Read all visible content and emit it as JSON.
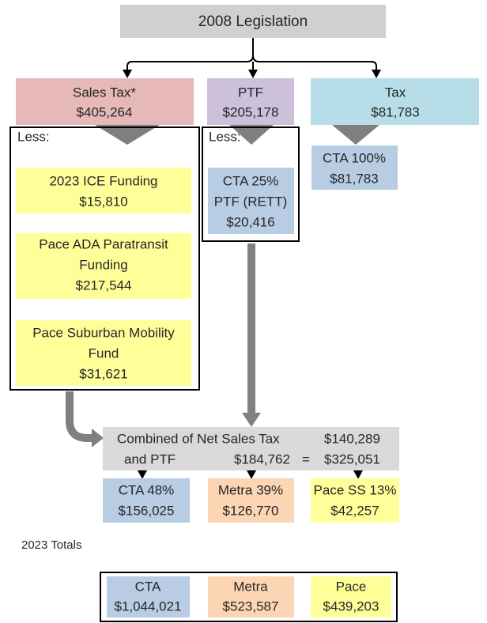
{
  "title": "2008 Legislation",
  "sources": [
    {
      "name": "Sales Tax*",
      "amount": "$405,264"
    },
    {
      "name": "PTF",
      "amount": "$205,178"
    },
    {
      "name": "Tax",
      "amount": "$81,783"
    }
  ],
  "sales_tax_less": {
    "label": "Less:",
    "items": [
      {
        "lines": [
          "2023 ICE Funding",
          "$15,810"
        ]
      },
      {
        "lines": [
          "Pace ADA Paratransit",
          "Funding",
          "$217,544"
        ]
      },
      {
        "lines": [
          "Pace Suburban Mobility",
          "Fund",
          "$31,621"
        ]
      }
    ]
  },
  "ptf_less": {
    "label": "Less:",
    "lines": [
      "CTA 25%",
      "PTF (RETT)",
      "$20,416"
    ]
  },
  "tax_allocation": {
    "lines": [
      "CTA 100%",
      "$81,783"
    ]
  },
  "combined": {
    "line1": "Combined of Net Sales Tax",
    "net_sales_tax": "$140,289",
    "line2": "and PTF",
    "net_ptf": "$184,762",
    "equals": "=",
    "total": "$325,051"
  },
  "split": [
    {
      "lines": [
        "CTA 48%",
        "$156,025"
      ]
    },
    {
      "lines": [
        "Metra 39%",
        "$126,770"
      ]
    },
    {
      "lines": [
        "Pace SS 13%",
        "$42,257"
      ]
    }
  ],
  "totals": {
    "title": "2023 Totals",
    "items": [
      {
        "name": "CTA",
        "amount": "$1,044,021"
      },
      {
        "name": "Metra",
        "amount": "$523,587"
      },
      {
        "name": "Pace",
        "amount": "$439,203"
      }
    ]
  }
}
